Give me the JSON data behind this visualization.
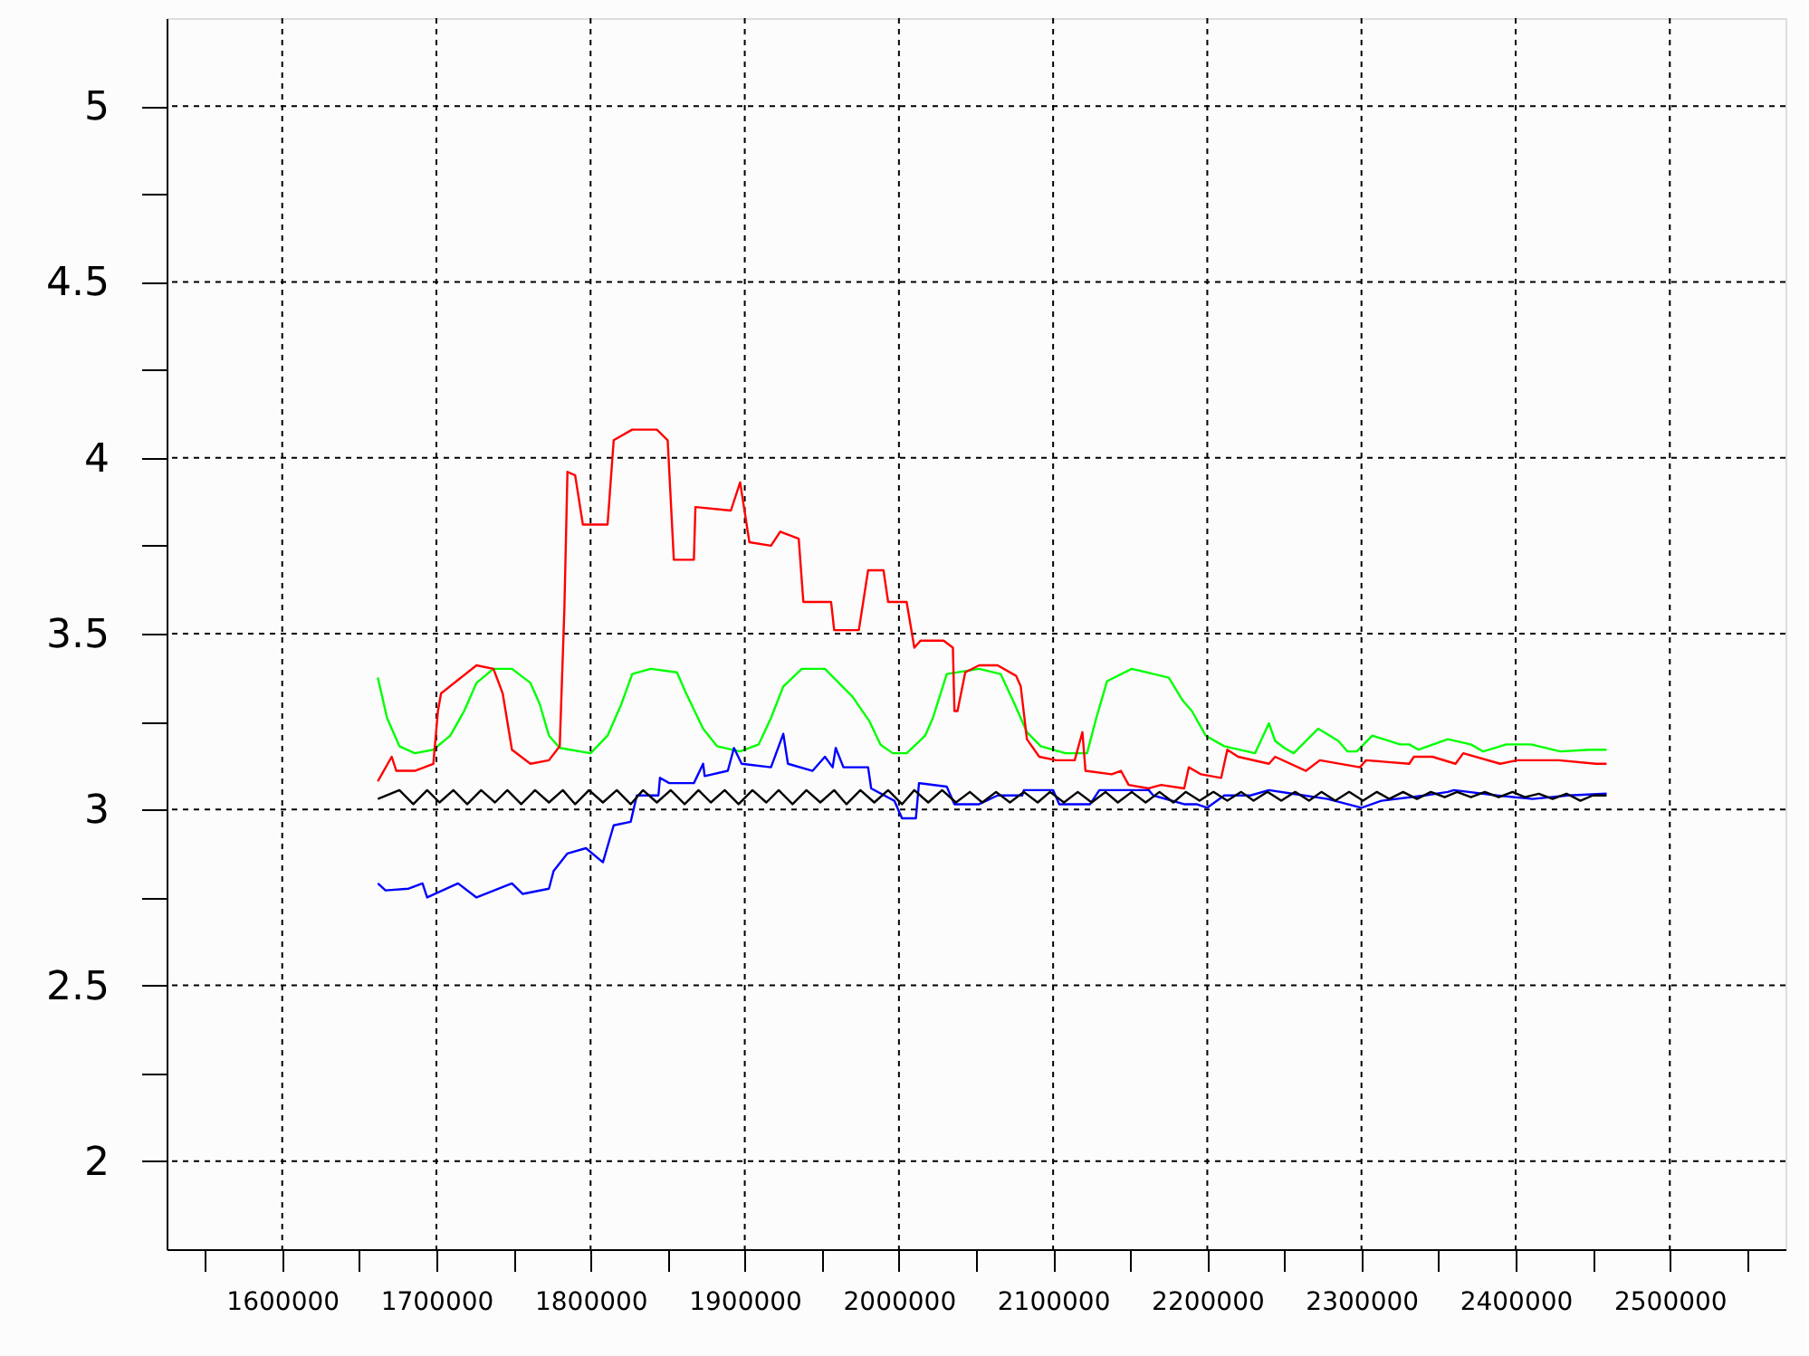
{
  "chart_data": {
    "type": "line",
    "xlim": [
      1525000,
      2575000
    ],
    "ylim": [
      1.75,
      5.25
    ],
    "xticks": [
      {
        "value": 1550000,
        "label": null
      },
      1600000,
      {
        "value": 1650000,
        "label": null
      },
      1700000,
      {
        "value": 1750000,
        "label": null
      },
      1800000,
      {
        "value": 1850000,
        "label": null
      },
      1900000,
      {
        "value": 1950000,
        "label": null
      },
      2000000,
      {
        "value": 2050000,
        "label": null
      },
      2100000,
      {
        "value": 2150000,
        "label": null
      },
      2200000,
      {
        "value": 2250000,
        "label": null
      },
      2300000,
      {
        "value": 2350000,
        "label": null
      },
      2400000,
      {
        "value": 2450000,
        "label": null
      },
      2500000,
      {
        "value": 2550000,
        "label": null
      }
    ],
    "yticks": [
      2,
      {
        "value": 2.25,
        "label": null
      },
      2.5,
      {
        "value": 2.75,
        "label": null
      },
      3,
      {
        "value": 3.25,
        "label": null
      },
      3.5,
      {
        "value": 3.75,
        "label": null
      },
      4,
      {
        "value": 4.25,
        "label": null
      },
      4.5,
      {
        "value": 4.75,
        "label": null
      },
      5
    ],
    "grid": true,
    "marker": "none",
    "line_style": "solid",
    "series": [
      {
        "color": "#00ff00",
        "x": [
          1662000,
          1668000,
          1676000,
          1686000,
          1698000,
          1709000,
          1718000,
          1726000,
          1737000,
          1749000,
          1761000,
          1767000,
          1773000,
          1780000,
          1800000,
          1811000,
          1820000,
          1827000,
          1839000,
          1856000,
          1862000,
          1873000,
          1882000,
          1897000,
          1909000,
          1917000,
          1925000,
          1937000,
          1952000,
          1970000,
          1981000,
          1988000,
          1996000,
          2005000,
          2017000,
          2022000,
          2031000,
          2052000,
          2066000,
          2075000,
          2083000,
          2092000,
          2108000,
          2122000,
          2128000,
          2135000,
          2151000,
          2175000,
          2184000,
          2190000,
          2199000,
          2211000,
          2231000,
          2240000,
          2244000,
          2250000,
          2256000,
          2272000,
          2285000,
          2291000,
          2297000,
          2307000,
          2325000,
          2331000,
          2337000,
          2356000,
          2371000,
          2379000,
          2394000,
          2410000,
          2429000,
          2448000,
          2459000
        ],
        "values": [
          3.375,
          3.26,
          3.18,
          3.16,
          3.17,
          3.21,
          3.28,
          3.36,
          3.4,
          3.4,
          3.36,
          3.3,
          3.21,
          3.175,
          3.16,
          3.21,
          3.3,
          3.385,
          3.4,
          3.39,
          3.33,
          3.23,
          3.18,
          3.165,
          3.185,
          3.26,
          3.35,
          3.4,
          3.4,
          3.32,
          3.25,
          3.185,
          3.16,
          3.16,
          3.21,
          3.26,
          3.385,
          3.4,
          3.385,
          3.3,
          3.22,
          3.18,
          3.16,
          3.16,
          3.26,
          3.365,
          3.4,
          3.375,
          3.31,
          3.28,
          3.21,
          3.18,
          3.16,
          3.245,
          3.195,
          3.175,
          3.16,
          3.23,
          3.195,
          3.165,
          3.165,
          3.21,
          3.185,
          3.185,
          3.17,
          3.2,
          3.185,
          3.165,
          3.185,
          3.185,
          3.165,
          3.17,
          3.17
        ]
      },
      {
        "color": "#ff0000",
        "x": [
          1662000,
          1671000,
          1674000,
          1686000,
          1698000,
          1701000,
          1703000,
          1726000,
          1737000,
          1743000,
          1749000,
          1761000,
          1773000,
          1780000,
          1783000,
          1785000,
          1790000,
          1795000,
          1811000,
          1815000,
          1827000,
          1843000,
          1850000,
          1854000,
          1867000,
          1868000,
          1891000,
          1897000,
          1903000,
          1917000,
          1923000,
          1935000,
          1938000,
          1956000,
          1958000,
          1974000,
          1980000,
          1990000,
          1993000,
          2005000,
          2010000,
          2014000,
          2029000,
          2035000,
          2036000,
          2038000,
          2043000,
          2052000,
          2064000,
          2076000,
          2079000,
          2083000,
          2091000,
          2102000,
          2114000,
          2119000,
          2121000,
          2138000,
          2144000,
          2149000,
          2162000,
          2170000,
          2185000,
          2188000,
          2196000,
          2209000,
          2213000,
          2220000,
          2240000,
          2244000,
          2264000,
          2273000,
          2299000,
          2303000,
          2331000,
          2334000,
          2346000,
          2361000,
          2366000,
          2390000,
          2401000,
          2428000,
          2452000,
          2459000
        ],
        "values": [
          3.08,
          3.15,
          3.11,
          3.11,
          3.13,
          3.28,
          3.33,
          3.41,
          3.4,
          3.33,
          3.17,
          3.13,
          3.14,
          3.18,
          3.57,
          3.96,
          3.95,
          3.81,
          3.81,
          4.05,
          4.08,
          4.08,
          4.05,
          3.71,
          3.71,
          3.86,
          3.85,
          3.93,
          3.76,
          3.75,
          3.79,
          3.77,
          3.59,
          3.59,
          3.51,
          3.51,
          3.68,
          3.68,
          3.59,
          3.59,
          3.46,
          3.48,
          3.48,
          3.46,
          3.28,
          3.28,
          3.39,
          3.41,
          3.41,
          3.38,
          3.35,
          3.2,
          3.15,
          3.14,
          3.14,
          3.22,
          3.11,
          3.1,
          3.11,
          3.07,
          3.06,
          3.07,
          3.06,
          3.12,
          3.1,
          3.09,
          3.17,
          3.15,
          3.13,
          3.15,
          3.11,
          3.14,
          3.12,
          3.14,
          3.13,
          3.15,
          3.15,
          3.13,
          3.16,
          3.13,
          3.14,
          3.14,
          3.13,
          3.13
        ]
      },
      {
        "color": "#0000ff",
        "x": [
          1662000,
          1667000,
          1682000,
          1691000,
          1694000,
          1714000,
          1726000,
          1749000,
          1756000,
          1773000,
          1776000,
          1785000,
          1797000,
          1808000,
          1815000,
          1826000,
          1830000,
          1844000,
          1845000,
          1851000,
          1867000,
          1873000,
          1874000,
          1889000,
          1893000,
          1898000,
          1917000,
          1925000,
          1928000,
          1944000,
          1952000,
          1957000,
          1959000,
          1964000,
          1980000,
          1982000,
          1997000,
          2002000,
          2011000,
          2013000,
          2031000,
          2036000,
          2052000,
          2064000,
          2080000,
          2081000,
          2100000,
          2104000,
          2124000,
          2130000,
          2162000,
          2165000,
          2185000,
          2193000,
          2200000,
          2211000,
          2228000,
          2240000,
          2255000,
          2278000,
          2300000,
          2313000,
          2341000,
          2356000,
          2360000,
          2388000,
          2411000,
          2434000,
          2459000
        ],
        "values": [
          2.79,
          2.77,
          2.775,
          2.79,
          2.75,
          2.79,
          2.75,
          2.79,
          2.76,
          2.775,
          2.825,
          2.875,
          2.89,
          2.85,
          2.955,
          2.965,
          3.04,
          3.04,
          3.09,
          3.075,
          3.075,
          3.13,
          3.095,
          3.11,
          3.175,
          3.13,
          3.12,
          3.215,
          3.13,
          3.11,
          3.15,
          3.12,
          3.175,
          3.12,
          3.12,
          3.06,
          3.025,
          2.975,
          2.975,
          3.075,
          3.065,
          3.015,
          3.015,
          3.04,
          3.04,
          3.055,
          3.055,
          3.015,
          3.015,
          3.055,
          3.055,
          3.04,
          3.015,
          3.015,
          3.005,
          3.04,
          3.04,
          3.055,
          3.045,
          3.03,
          3.005,
          3.025,
          3.04,
          3.05,
          3.055,
          3.04,
          3.03,
          3.04,
          3.045
        ]
      },
      {
        "color": "#000000",
        "x": [
          1662000,
          1676000,
          1685000,
          1694000,
          1702000,
          1711000,
          1720000,
          1729000,
          1738000,
          1746000,
          1755000,
          1764000,
          1773000,
          1782000,
          1790000,
          1799000,
          1808000,
          1817000,
          1826000,
          1834000,
          1843000,
          1852000,
          1861000,
          1870000,
          1878000,
          1887000,
          1896000,
          1905000,
          1914000,
          1922000,
          1931000,
          1940000,
          1949000,
          1958000,
          1966000,
          1975000,
          1984000,
          1993000,
          2002000,
          2010000,
          2019000,
          2028000,
          2037000,
          2046000,
          2054000,
          2063000,
          2072000,
          2081000,
          2090000,
          2098000,
          2107000,
          2116000,
          2125000,
          2134000,
          2142000,
          2151000,
          2160000,
          2169000,
          2178000,
          2186000,
          2195000,
          2204000,
          2213000,
          2222000,
          2230000,
          2239000,
          2248000,
          2257000,
          2266000,
          2274000,
          2283000,
          2292000,
          2301000,
          2310000,
          2318000,
          2327000,
          2336000,
          2345000,
          2354000,
          2362000,
          2371000,
          2380000,
          2389000,
          2398000,
          2406000,
          2415000,
          2424000,
          2433000,
          2442000,
          2450000,
          2459000
        ],
        "values": [
          3.03,
          3.055,
          3.015,
          3.055,
          3.02,
          3.055,
          3.015,
          3.055,
          3.02,
          3.055,
          3.015,
          3.055,
          3.02,
          3.055,
          3.015,
          3.055,
          3.02,
          3.055,
          3.015,
          3.055,
          3.02,
          3.055,
          3.015,
          3.055,
          3.02,
          3.055,
          3.015,
          3.055,
          3.02,
          3.055,
          3.015,
          3.055,
          3.02,
          3.055,
          3.015,
          3.055,
          3.02,
          3.055,
          3.015,
          3.055,
          3.02,
          3.055,
          3.02,
          3.05,
          3.02,
          3.05,
          3.02,
          3.05,
          3.02,
          3.05,
          3.02,
          3.05,
          3.02,
          3.05,
          3.02,
          3.05,
          3.02,
          3.05,
          3.02,
          3.05,
          3.025,
          3.05,
          3.025,
          3.05,
          3.025,
          3.05,
          3.025,
          3.05,
          3.025,
          3.05,
          3.025,
          3.05,
          3.025,
          3.05,
          3.03,
          3.05,
          3.03,
          3.05,
          3.035,
          3.05,
          3.035,
          3.05,
          3.035,
          3.05,
          3.035,
          3.045,
          3.03,
          3.045,
          3.025,
          3.04,
          3.04
        ]
      }
    ]
  }
}
